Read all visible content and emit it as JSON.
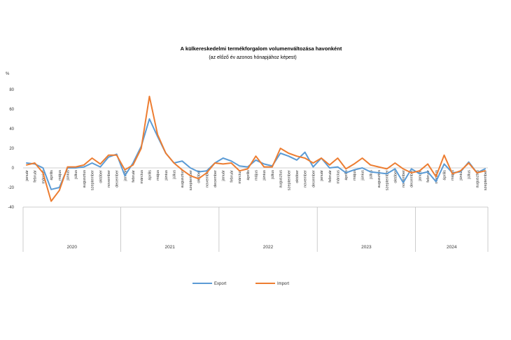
{
  "chart_data": {
    "type": "line",
    "title": "A külkereskedelmi termékforgalom volumenváltozása havonként",
    "subtitle": "(az előző év azonos hónapjához képest)",
    "ylabel": "%",
    "ylim": [
      -20,
      80
    ],
    "yticks": [
      "80",
      "60",
      "40",
      "20",
      "0",
      "-20",
      "-40"
    ],
    "ytick_values": [
      80,
      60,
      40,
      20,
      0,
      -20,
      -40
    ],
    "grid": false,
    "legend_position": "bottom",
    "months": [
      "január",
      "február",
      "március",
      "április",
      "május",
      "június",
      "július",
      "augusztus",
      "szeptember",
      "október",
      "november",
      "december"
    ],
    "month_labels": [
      "január",
      "február",
      "március",
      "április",
      "május",
      "június",
      "július",
      "augusztus",
      "szeptember",
      "október",
      "november",
      "december",
      "január",
      "február",
      "március",
      "április",
      "május",
      "június",
      "július",
      "augusztus",
      "szeptember",
      "október",
      "november",
      "december",
      "január",
      "február",
      "március",
      "április",
      "május",
      "június",
      "július",
      "augusztus",
      "szeptember",
      "október",
      "november",
      "december",
      "január",
      "február",
      "március",
      "április",
      "május",
      "június",
      "július",
      "augusztus",
      "szeptember",
      "október",
      "november",
      "december",
      "január",
      "február",
      "március",
      "április",
      "május",
      "június",
      "július",
      "augusztus",
      "szeptember"
    ],
    "years": [
      "2020",
      "2021",
      "2022",
      "2023",
      "2024"
    ],
    "series": [
      {
        "name": "Export",
        "color": "#5b9bd5",
        "values": [
          5,
          4,
          0,
          -22,
          -20,
          0,
          0,
          1,
          5,
          1,
          11,
          14,
          -8,
          5,
          22,
          50,
          32,
          15,
          5,
          7,
          0,
          -4,
          -3,
          5,
          10,
          7,
          2,
          1,
          8,
          4,
          2,
          15,
          12,
          8,
          16,
          1,
          10,
          0,
          1,
          -5,
          -2,
          0,
          -4,
          -5,
          -6,
          -1,
          -15,
          -1,
          -6,
          -4,
          -14,
          4,
          -5,
          -4,
          6,
          -5,
          -1
        ]
      },
      {
        "name": "Import",
        "color": "#ed7d31",
        "values": [
          3,
          5,
          -5,
          -34,
          -23,
          1,
          1,
          3,
          10,
          4,
          13,
          13,
          -2,
          3,
          20,
          73,
          34,
          15,
          5,
          -2,
          -8,
          -11,
          -5,
          5,
          4,
          5,
          -3,
          -1,
          12,
          1,
          1,
          20,
          15,
          12,
          10,
          5,
          10,
          3,
          10,
          -1,
          4,
          10,
          3,
          1,
          -1,
          5,
          -1,
          -5,
          -3,
          4,
          -9,
          13,
          -6,
          -3,
          5,
          -5,
          -3
        ]
      }
    ]
  }
}
